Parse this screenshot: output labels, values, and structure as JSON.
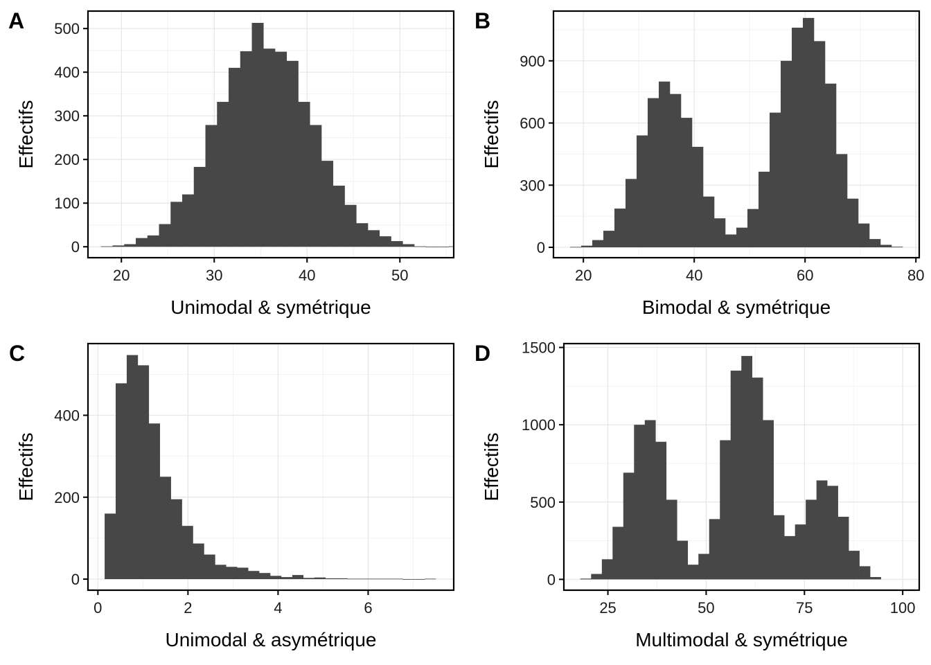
{
  "chart_data": [
    {
      "type": "bar",
      "panel_label": "A",
      "xlabel": "Unimodal & symétrique",
      "ylabel": "Effectifs",
      "xlim": [
        16.4,
        55.8
      ],
      "ylim": [
        -25,
        540
      ],
      "xticks": [
        20,
        30,
        40,
        50
      ],
      "yticks": [
        0,
        100,
        200,
        300,
        400,
        500
      ],
      "xminor": [
        15,
        25,
        35,
        45,
        55
      ],
      "yminor": [
        50,
        150,
        250,
        350,
        450
      ],
      "grid": true,
      "bin_start": 17.8,
      "bin_width": 1.25,
      "values": [
        1,
        3,
        6,
        20,
        26,
        52,
        103,
        120,
        183,
        279,
        332,
        410,
        448,
        513,
        454,
        447,
        426,
        332,
        279,
        197,
        140,
        96,
        54,
        38,
        24,
        13,
        6,
        1,
        0,
        0,
        1
      ]
    },
    {
      "type": "bar",
      "panel_label": "B",
      "xlabel": "Bimodal & symétrique",
      "ylabel": "Effectifs",
      "xlim": [
        14.6,
        80.6
      ],
      "ylim": [
        -50,
        1140
      ],
      "xticks": [
        20,
        40,
        60,
        80
      ],
      "yticks": [
        0,
        300,
        600,
        900
      ],
      "xminor": [
        30,
        50,
        70
      ],
      "yminor": [
        150,
        450,
        750,
        1050
      ],
      "grid": true,
      "bin_start": 17.6,
      "bin_width": 2.0,
      "values": [
        2,
        8,
        35,
        80,
        187,
        330,
        540,
        720,
        800,
        740,
        625,
        485,
        245,
        140,
        62,
        95,
        185,
        365,
        650,
        900,
        1060,
        1107,
        995,
        790,
        450,
        235,
        115,
        40,
        12,
        3
      ]
    },
    {
      "type": "bar",
      "panel_label": "C",
      "xlabel": "Unimodal & asymétrique",
      "ylabel": "Effectifs",
      "xlim": [
        -0.22,
        7.9
      ],
      "ylim": [
        -27,
        575
      ],
      "xticks": [
        0,
        2,
        4,
        6
      ],
      "yticks": [
        0,
        200,
        400
      ],
      "xminor": [
        1,
        3,
        5,
        7
      ],
      "yminor": [
        100,
        300,
        500
      ],
      "grid": true,
      "bin_start": 0.15,
      "bin_width": 0.245,
      "values": [
        160,
        478,
        547,
        522,
        380,
        250,
        195,
        130,
        87,
        60,
        35,
        30,
        28,
        20,
        15,
        8,
        5,
        10,
        3,
        4,
        2,
        2,
        1,
        1,
        1,
        1,
        1,
        0,
        0,
        1
      ]
    },
    {
      "type": "bar",
      "panel_label": "D",
      "xlabel": "Multimodal & symétrique",
      "ylabel": "Effectifs",
      "xlim": [
        13.8,
        104.2
      ],
      "ylim": [
        -70,
        1525
      ],
      "xticks": [
        25,
        50,
        75,
        100
      ],
      "yticks": [
        0,
        500,
        1000,
        1500
      ],
      "xminor": [
        37.5,
        62.5,
        87.5
      ],
      "yminor": [
        250,
        750,
        1250
      ],
      "grid": true,
      "bin_start": 18.0,
      "bin_width": 2.73,
      "values": [
        5,
        35,
        130,
        340,
        690,
        1000,
        1030,
        890,
        515,
        250,
        95,
        165,
        390,
        900,
        1350,
        1445,
        1305,
        1030,
        415,
        280,
        355,
        515,
        640,
        605,
        405,
        185,
        85,
        15
      ]
    }
  ]
}
